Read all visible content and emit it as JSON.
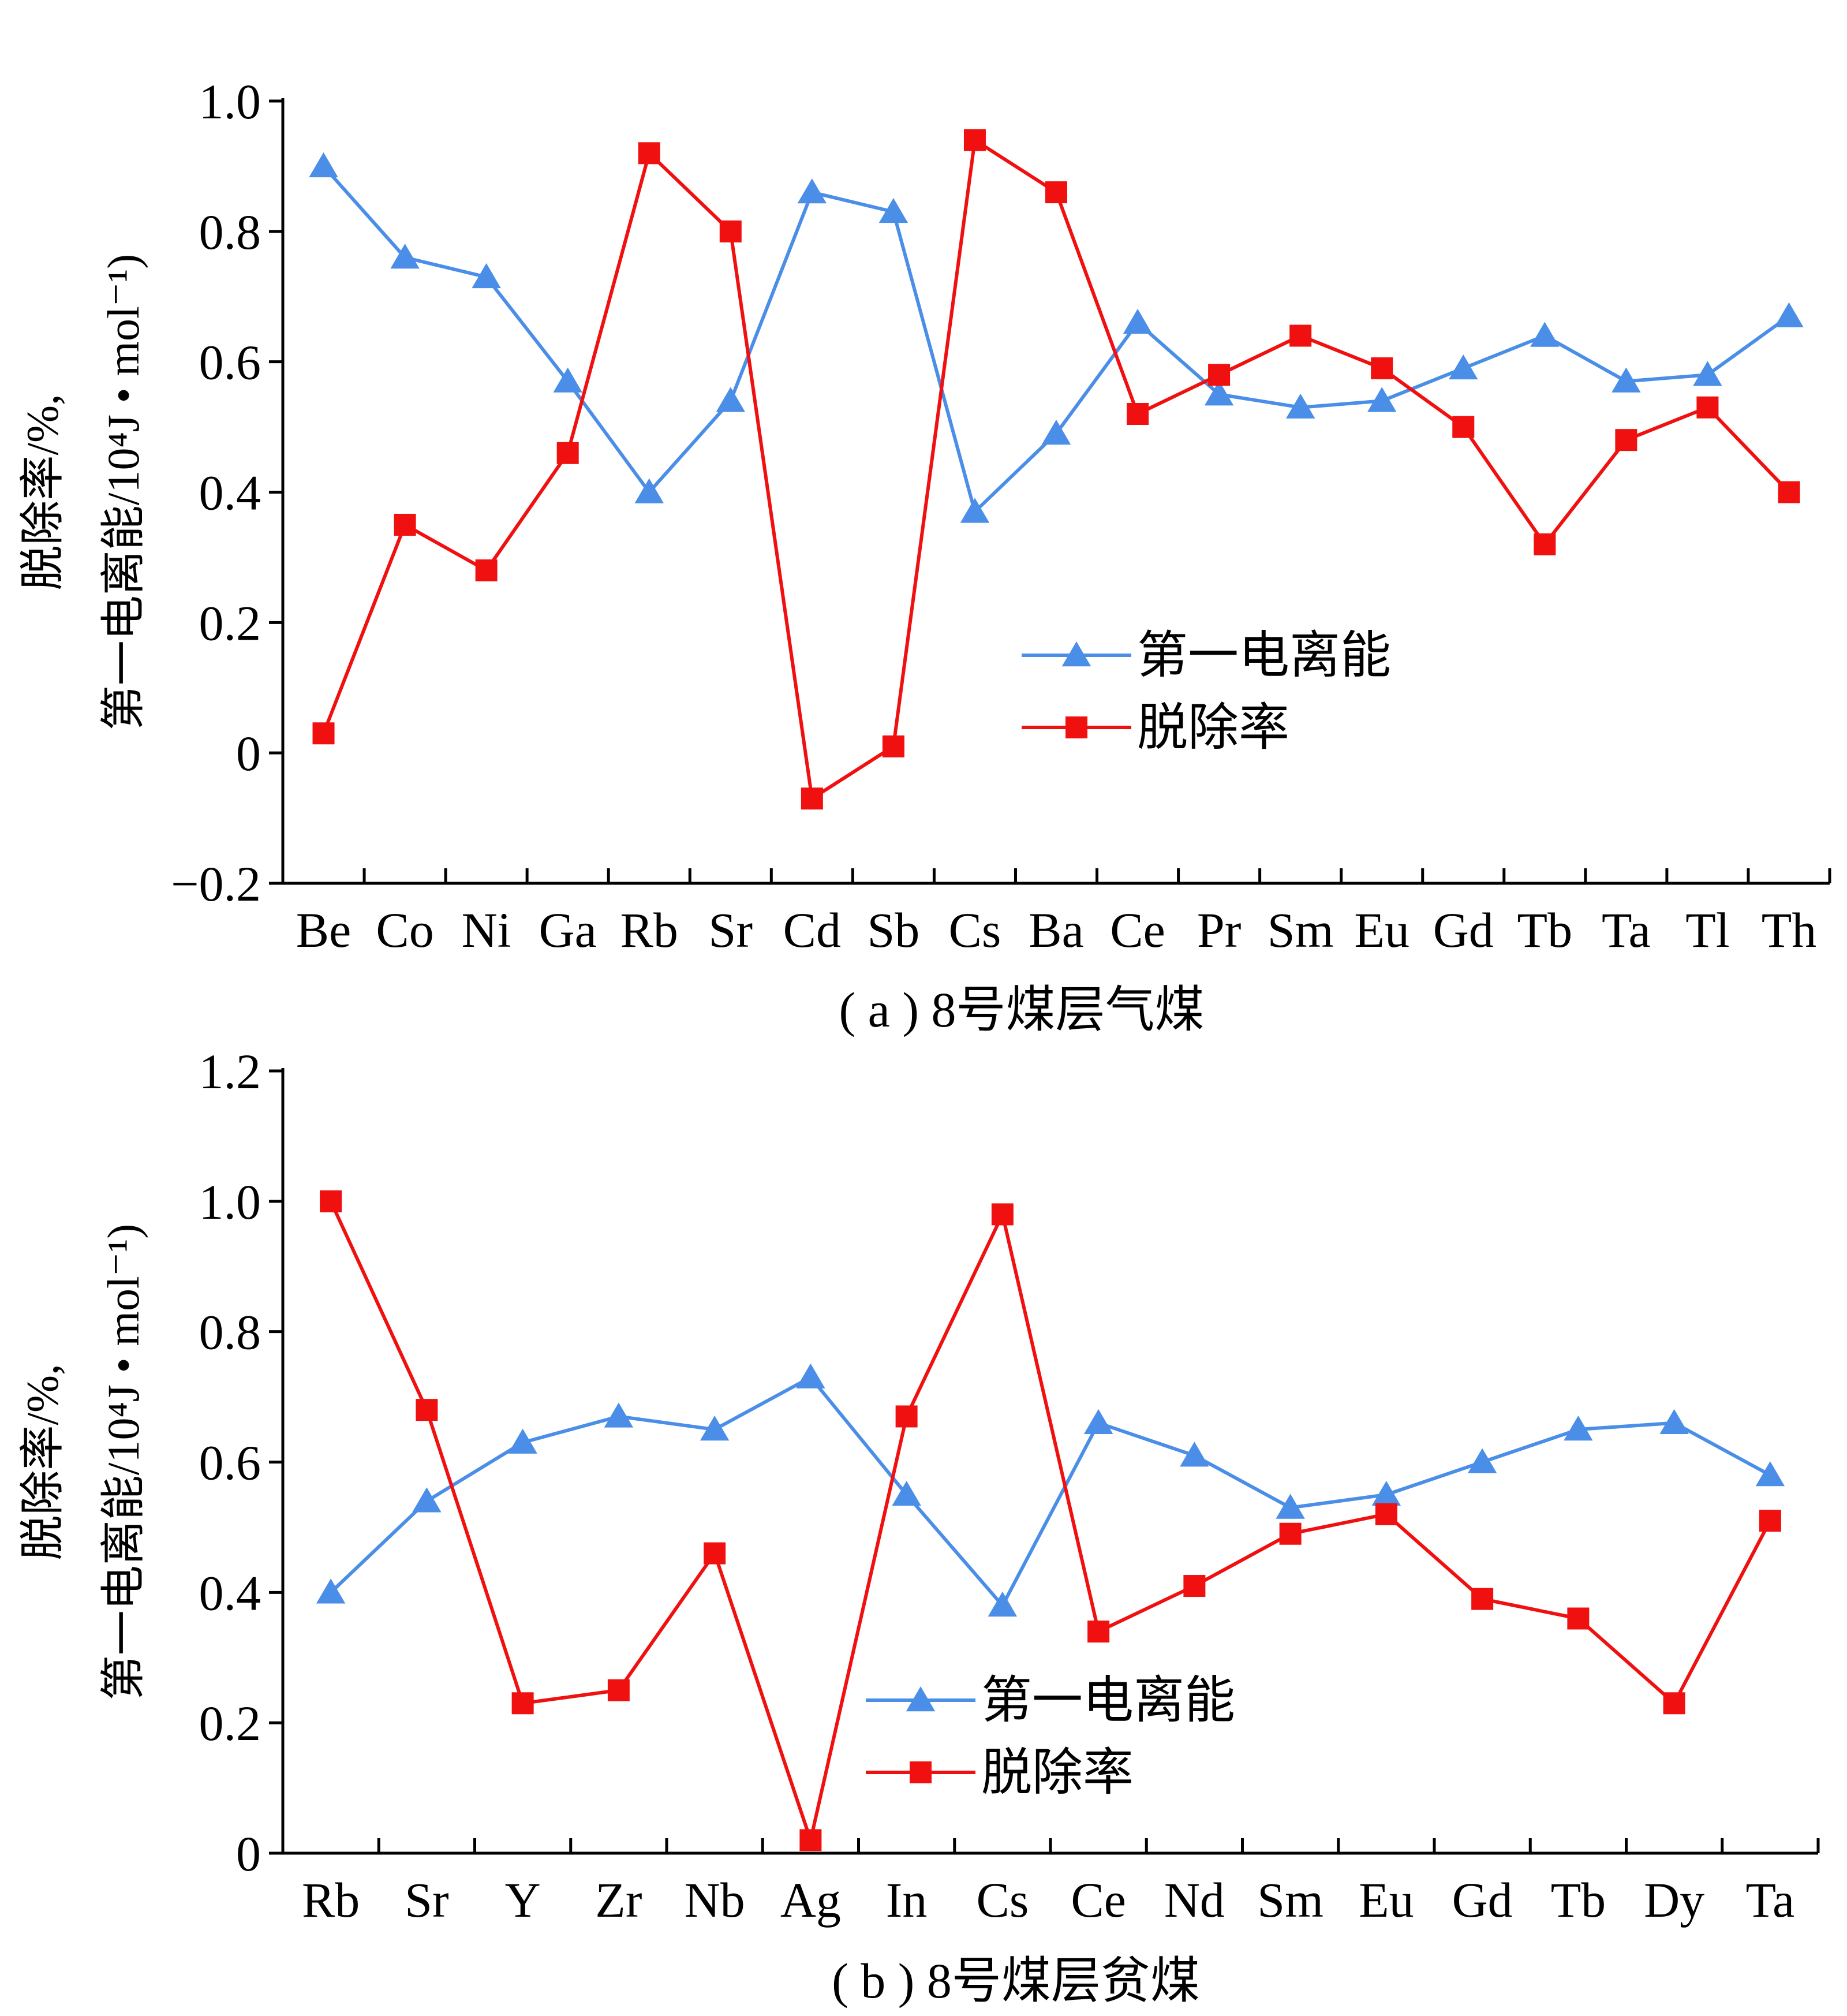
{
  "colors": {
    "ionization": "#4a8ee8",
    "removal": "#f01010",
    "axis": "#000000"
  },
  "chart_data": [
    {
      "type": "line",
      "caption": "( a ) 8号煤层气煤",
      "ylabel_line1": "脱除率/%,",
      "ylabel_line2": "第一电离能/10⁴J • mol⁻¹)",
      "categories": [
        "Be",
        "Co",
        "Ni",
        "Ga",
        "Rb",
        "Sr",
        "Cd",
        "Sb",
        "Cs",
        "Ba",
        "Ce",
        "Pr",
        "Sm",
        "Eu",
        "Gd",
        "Tb",
        "Ta",
        "Tl",
        "Th"
      ],
      "ylim": [
        -0.2,
        1.0
      ],
      "yticks": [
        -0.2,
        0,
        0.2,
        0.4,
        0.6,
        0.8,
        1.0
      ],
      "ytick_labels": [
        "−0.2",
        "0",
        "0.2",
        "0.4",
        "0.6",
        "0.8",
        "1.0"
      ],
      "legend_position": "center-right",
      "series": [
        {
          "name": "第一电离能",
          "marker": "triangle",
          "color": "#4a8ee8",
          "values": [
            0.9,
            0.76,
            0.73,
            0.57,
            0.4,
            0.54,
            0.86,
            0.83,
            0.37,
            0.49,
            0.66,
            0.55,
            0.53,
            0.54,
            0.59,
            0.64,
            0.57,
            0.58,
            0.67
          ]
        },
        {
          "name": "脱除率",
          "marker": "square",
          "color": "#f01010",
          "values": [
            0.03,
            0.35,
            0.28,
            0.46,
            0.92,
            0.8,
            -0.07,
            0.01,
            0.94,
            0.86,
            0.52,
            0.58,
            0.64,
            0.59,
            0.5,
            0.32,
            0.48,
            0.53,
            0.4
          ]
        }
      ]
    },
    {
      "type": "line",
      "caption": "( b ) 8号煤层贫煤",
      "ylabel_line1": "脱除率/%,",
      "ylabel_line2": "第一电离能/10⁴J • mol⁻¹)",
      "categories": [
        "Rb",
        "Sr",
        "Y",
        "Zr",
        "Nb",
        "Ag",
        "In",
        "Cs",
        "Ce",
        "Nd",
        "Sm",
        "Eu",
        "Gd",
        "Tb",
        "Dy",
        "Ta"
      ],
      "ylim": [
        0,
        1.2
      ],
      "yticks": [
        0,
        0.2,
        0.4,
        0.6,
        0.8,
        1.0,
        1.2
      ],
      "ytick_labels": [
        "0",
        "0.2",
        "0.4",
        "0.6",
        "0.8",
        "1.0",
        "1.2"
      ],
      "legend_position": "bottom-center",
      "series": [
        {
          "name": "第一电离能",
          "marker": "triangle",
          "color": "#4a8ee8",
          "values": [
            0.4,
            0.54,
            0.63,
            0.67,
            0.65,
            0.73,
            0.55,
            0.38,
            0.66,
            0.61,
            0.53,
            0.55,
            0.6,
            0.65,
            0.66,
            0.58
          ]
        },
        {
          "name": "脱除率",
          "marker": "square",
          "color": "#f01010",
          "values": [
            1.0,
            0.68,
            0.23,
            0.25,
            0.46,
            0.02,
            0.67,
            0.98,
            0.34,
            0.41,
            0.49,
            0.52,
            0.39,
            0.36,
            0.23,
            0.51
          ]
        }
      ]
    }
  ]
}
